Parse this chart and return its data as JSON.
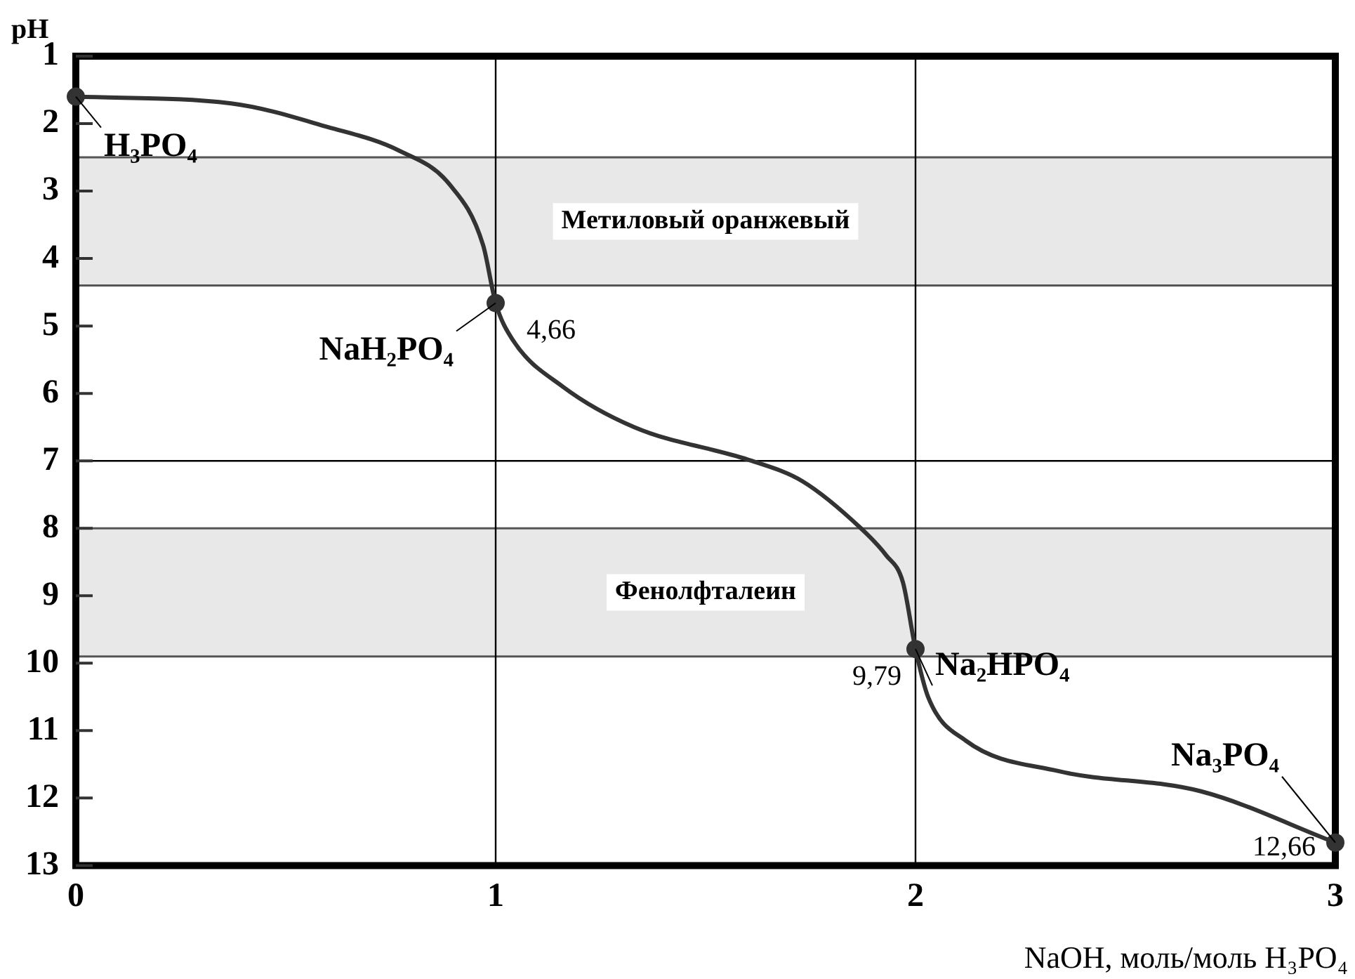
{
  "chart_data": {
    "type": "line",
    "xlabel": "NaOH, моль/моль H₃PO₄",
    "ylabel": "pH",
    "xlim": [
      0,
      3
    ],
    "xticks": [
      0,
      1,
      2,
      3
    ],
    "ylim": [
      13,
      1
    ],
    "yticks": [
      1,
      2,
      3,
      4,
      5,
      6,
      7,
      8,
      9,
      10,
      11,
      12,
      13
    ],
    "grid": false,
    "legend": false,
    "line_style": "solid",
    "series": [
      {
        "color": "#333333",
        "marker": "none",
        "x": [
          0,
          0.37,
          0.6,
          0.77,
          0.89,
          0.97,
          1,
          1.04,
          1.16,
          1.33,
          1.61,
          1.73,
          1.87,
          1.93,
          1.97,
          2,
          2.03,
          2.12,
          2.34,
          2.68,
          3
        ],
        "values": [
          1.6,
          1.7,
          2.05,
          2.4,
          2.9,
          3.8,
          4.66,
          5.2,
          5.9,
          6.5,
          7.0,
          7.3,
          8.0,
          8.4,
          8.8,
          9.79,
          10.5,
          11.15,
          11.6,
          11.9,
          12.66
        ]
      },
      {
        "type": "scatter",
        "color": "#333333",
        "marker": "circle",
        "x": [
          0,
          1,
          2,
          3
        ],
        "values": [
          1.6,
          4.66,
          9.79,
          12.66
        ],
        "value_labels": [
          null,
          "4,66",
          "9,79",
          "12,66"
        ]
      }
    ],
    "bands": [
      {
        "axis": "y",
        "from": 2.5,
        "to": 4.4,
        "label": "Метиловый оранжевый",
        "color": "#e8e8e8"
      },
      {
        "axis": "y",
        "from": 8.0,
        "to": 9.9,
        "label": "Фенолфталеин",
        "color": "#e8e8e8"
      }
    ],
    "ref_lines": [
      {
        "axis": "x",
        "value": 1,
        "color": "#000000"
      },
      {
        "axis": "x",
        "value": 2,
        "color": "#000000"
      },
      {
        "axis": "y",
        "value": 7,
        "color": "#000000"
      }
    ],
    "annotations": [
      {
        "text": "H₃PO₄",
        "x": 0,
        "y": 1.6
      },
      {
        "text": "NaH₂PO₄",
        "x": 1,
        "y": 4.66
      },
      {
        "text": "Na₂HPO₄",
        "x": 2,
        "y": 9.79
      },
      {
        "text": "Na₃PO₄",
        "x": 3,
        "y": 12.66
      }
    ]
  }
}
